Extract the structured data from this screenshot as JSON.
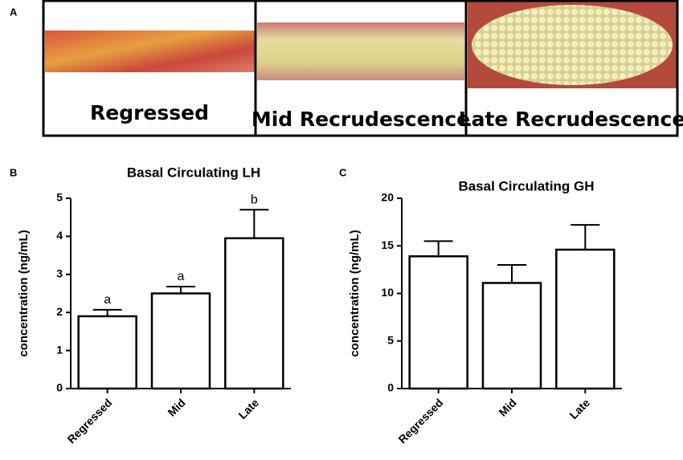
{
  "panels": {
    "a": "A",
    "b": "B",
    "c": "C",
    "photos": [
      "Regressed",
      "Mid Recrudescence",
      "Late Recrudescence"
    ]
  },
  "chart_data": [
    {
      "type": "bar",
      "title": "Basal Circulating LH",
      "ylabel": "concentration (ng/mL)",
      "categories": [
        "Regressed",
        "Mid",
        "Late"
      ],
      "values": [
        1.9,
        2.5,
        3.95
      ],
      "errors": [
        0.17,
        0.18,
        0.75
      ],
      "annotations": [
        "a",
        "a",
        "b"
      ],
      "color": "#ffffff",
      "ylim": [
        0,
        5
      ],
      "yticks": [
        0,
        1,
        2,
        3,
        4,
        5
      ]
    },
    {
      "type": "bar",
      "title": "Basal Circulating GH",
      "ylabel": "concentration (ng/mL)",
      "categories": [
        "Regressed",
        "Mid",
        "Late"
      ],
      "values": [
        13.9,
        11.1,
        14.6
      ],
      "errors": [
        1.6,
        1.9,
        2.6
      ],
      "color": "#ffffff",
      "ylim": [
        0,
        20
      ],
      "yticks": [
        0,
        5,
        10,
        15,
        20
      ]
    }
  ]
}
